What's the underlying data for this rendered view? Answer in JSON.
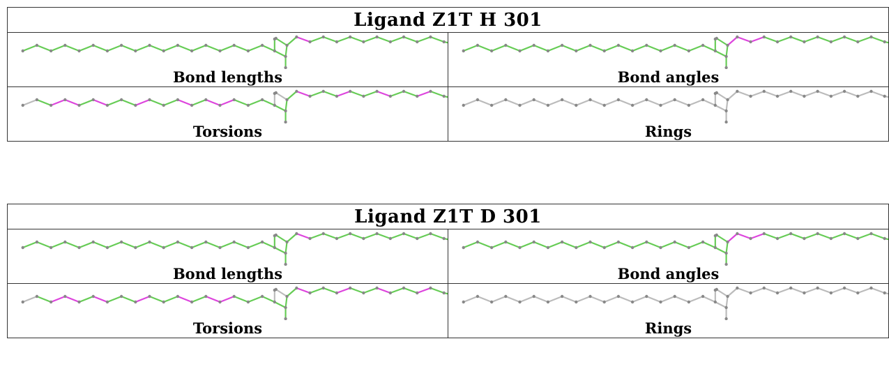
{
  "ligands": [
    {
      "title": "Ligand Z1T H 301",
      "panels": [
        {
          "label": "Bond lengths",
          "scheme": "bond_lengths_h"
        },
        {
          "label": "Bond angles",
          "scheme": "bond_angles_h"
        },
        {
          "label": "Torsions",
          "scheme": "torsions_h"
        },
        {
          "label": "Rings",
          "scheme": "rings"
        }
      ]
    },
    {
      "title": "Ligand Z1T D 301",
      "panels": [
        {
          "label": "Bond lengths",
          "scheme": "bond_lengths_d"
        },
        {
          "label": "Bond angles",
          "scheme": "bond_angles_d"
        },
        {
          "label": "Torsions",
          "scheme": "torsions_d"
        },
        {
          "label": "Rings",
          "scheme": "rings"
        }
      ]
    }
  ],
  "colors": {
    "normal": "#66cc55",
    "outlier": "#dd44dd",
    "neutral": "#bbbbbb",
    "atom": "#888888"
  }
}
